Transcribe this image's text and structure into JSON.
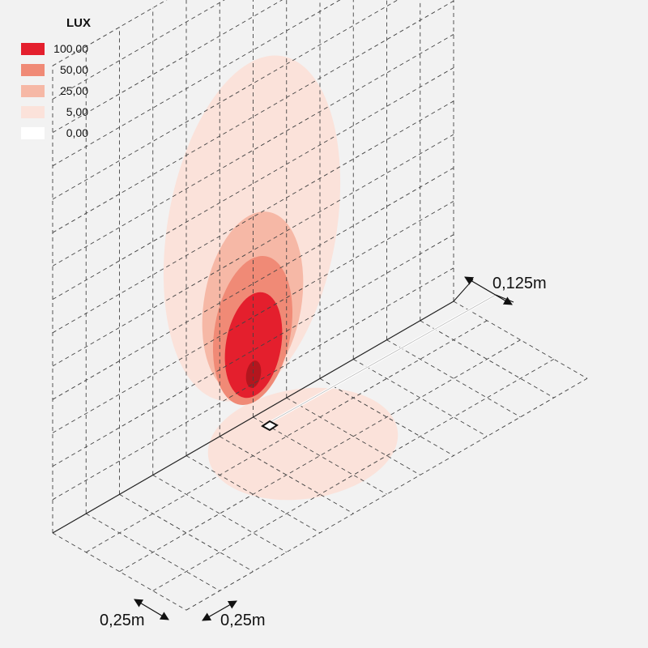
{
  "legend": {
    "title": "LUX",
    "items": [
      {
        "label": "100,00",
        "color": "#e41f2d"
      },
      {
        "label": "50,00",
        "color": "#f08a76"
      },
      {
        "label": "25,00",
        "color": "#f6b8a6"
      },
      {
        "label": "5,00",
        "color": "#fbe2da"
      },
      {
        "label": "0,00",
        "color": "#ffffff"
      }
    ]
  },
  "dimensions": {
    "source_offset": "0,125m",
    "grid_x": "0,25m",
    "grid_y": "0,25m"
  },
  "colors": {
    "background": "#f2f2f2",
    "core": "#b3161e",
    "grid": "#444444"
  }
}
